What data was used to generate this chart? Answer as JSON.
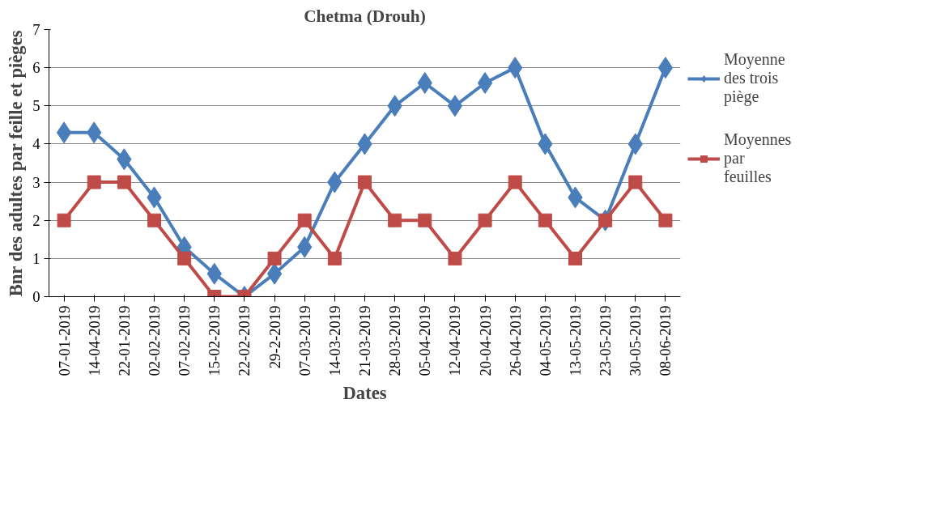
{
  "chart_data": {
    "type": "line",
    "title": "Chetma (Drouh)",
    "xlabel": "Dates",
    "ylabel": "Bnr des adultes par feille et pièges",
    "categories": [
      "07-01-2019",
      "14-04-2019",
      "22-01-2019",
      "02-02-2019",
      "07-02-2019",
      "15-02-2019",
      "22-02-2019",
      "29-2-2019",
      "07-03-2019",
      "14-03-2019",
      "21-03-2019",
      "28-03-2019",
      "05-04-2019",
      "12-04-2019",
      "20-04-2019",
      "26-04-2019",
      "04-05-2019",
      "13-05-2019",
      "23-05-2019",
      "30-05-2019",
      "08-06-2019"
    ],
    "series": [
      {
        "name": "Moyenne des trois piège",
        "color": "#4a7ebb",
        "marker": "diamond",
        "values": [
          4.3,
          4.3,
          3.6,
          2.6,
          1.3,
          0.6,
          0,
          0.6,
          1.3,
          3,
          4,
          5,
          5.6,
          5,
          5.6,
          6,
          4,
          2.6,
          2,
          4,
          6
        ]
      },
      {
        "name": "Moyennes par feuilles",
        "color": "#be4b48",
        "marker": "square",
        "values": [
          2,
          3,
          3,
          2,
          1,
          0,
          0,
          1,
          2,
          1,
          3,
          2,
          2,
          1,
          2,
          3,
          2,
          1,
          2,
          3,
          2
        ]
      }
    ],
    "ylim": [
      0,
      7
    ],
    "yticks": [
      0,
      1,
      2,
      3,
      4,
      5,
      6,
      7
    ],
    "grid": "y",
    "legend": "right"
  }
}
